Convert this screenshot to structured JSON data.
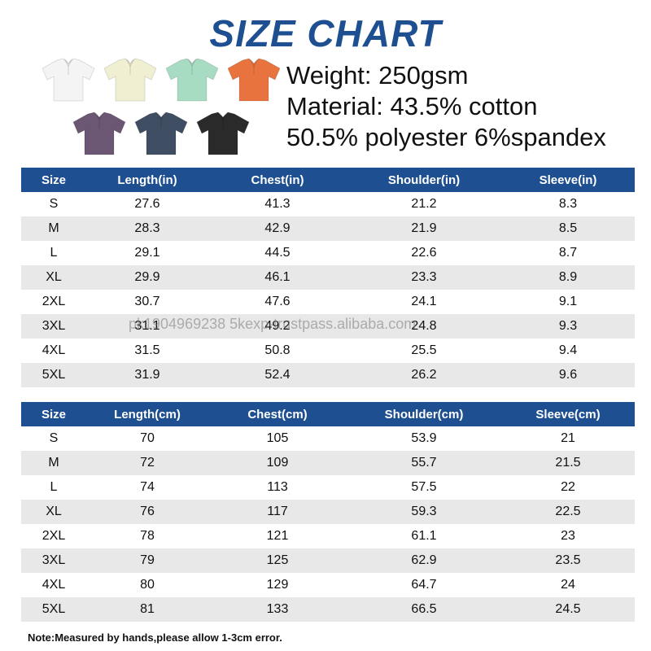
{
  "title": "SIZE CHART",
  "info": {
    "weight": "Weight: 250gsm",
    "material_line1": "Material: 43.5% cotton",
    "material_line2": "50.5% polyester 6%spandex"
  },
  "shirts": [
    {
      "color_name": "white",
      "color": "#f4f4f4"
    },
    {
      "color_name": "cream",
      "color": "#f1efd2"
    },
    {
      "color_name": "mint",
      "color": "#a8dcc2"
    },
    {
      "color_name": "orange",
      "color": "#e8733f"
    },
    {
      "color_name": "purple",
      "color": "#6b5673"
    },
    {
      "color_name": "navy",
      "color": "#3f4e63"
    },
    {
      "color_name": "black",
      "color": "#2a2a2a"
    }
  ],
  "colors": {
    "header_bg": "#1e4f91",
    "row_alt_bg": "#e8e8e8"
  },
  "table_in": {
    "headers": [
      "Size",
      "Length(in)",
      "Chest(in)",
      "Shoulder(in)",
      "Sleeve(in)"
    ],
    "rows": [
      [
        "S",
        "27.6",
        "41.3",
        "21.2",
        "8.3"
      ],
      [
        "M",
        "28.3",
        "42.9",
        "21.9",
        "8.5"
      ],
      [
        "L",
        "29.1",
        "44.5",
        "22.6",
        "8.7"
      ],
      [
        "XL",
        "29.9",
        "46.1",
        "23.3",
        "8.9"
      ],
      [
        "2XL",
        "30.7",
        "47.6",
        "24.1",
        "9.1"
      ],
      [
        "3XL",
        "31.1",
        "49.2",
        "24.8",
        "9.3"
      ],
      [
        "4XL",
        "31.5",
        "50.8",
        "25.5",
        "9.4"
      ],
      [
        "5XL",
        "31.9",
        "52.4",
        "26.2",
        "9.6"
      ]
    ]
  },
  "table_cm": {
    "headers": [
      "Size",
      "Length(cm)",
      "Chest(cm)",
      "Shoulder(cm)",
      "Sleeve(cm)"
    ],
    "rows": [
      [
        "S",
        "70",
        "105",
        "53.9",
        "21"
      ],
      [
        "M",
        "72",
        "109",
        "55.7",
        "21.5"
      ],
      [
        "L",
        "74",
        "113",
        "57.5",
        "22"
      ],
      [
        "XL",
        "76",
        "117",
        "59.3",
        "22.5"
      ],
      [
        "2XL",
        "78",
        "121",
        "61.1",
        "23"
      ],
      [
        "3XL",
        "79",
        "125",
        "62.9",
        "23.5"
      ],
      [
        "4XL",
        "80",
        "129",
        "64.7",
        "24"
      ],
      [
        "5XL",
        "81",
        "133",
        "66.5",
        "24.5"
      ]
    ]
  },
  "watermark": "pk1904969238 5kexp-trustpass.alibaba.com",
  "note": "Note:Measured by hands,please allow 1-3cm error."
}
